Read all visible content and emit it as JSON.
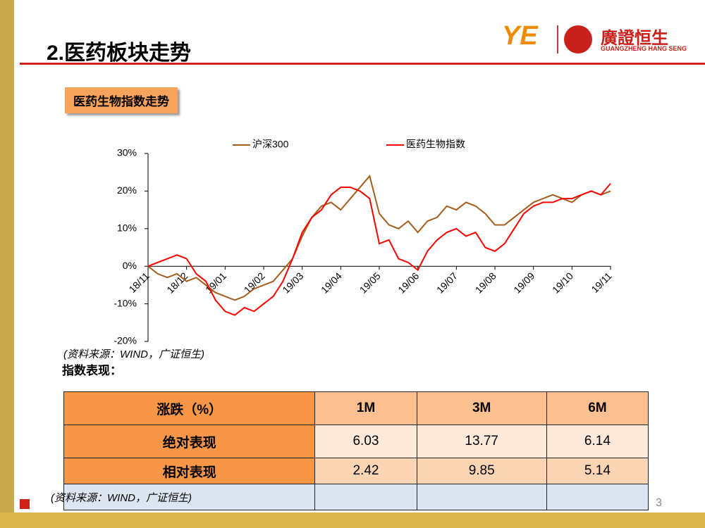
{
  "header": {
    "title": "2.医药板块走势",
    "logo_mark": "YE",
    "logo_cn": "廣證恒生",
    "logo_en": "GUANGZHENG HANG SENG"
  },
  "section_label": "医药生物指数走势",
  "chart_data": {
    "type": "line",
    "categories": [
      "18/11",
      null,
      null,
      null,
      "18/12",
      null,
      null,
      null,
      "19/01",
      null,
      null,
      null,
      "19/02",
      null,
      null,
      null,
      "19/03",
      null,
      null,
      null,
      "19/04",
      null,
      null,
      null,
      "19/05",
      null,
      null,
      null,
      "19/06",
      null,
      null,
      null,
      "19/07",
      null,
      null,
      null,
      "19/08",
      null,
      null,
      null,
      "19/09",
      null,
      null,
      null,
      "19/10",
      null,
      null,
      null,
      "19/11"
    ],
    "series": [
      {
        "name": "沪深300",
        "color": "#a65c1c",
        "values": [
          0,
          -2,
          -3,
          -2,
          -4,
          -3,
          -5,
          -7,
          -8,
          -9,
          -8,
          -6,
          -5,
          -4,
          -1,
          2,
          8,
          13,
          16,
          17,
          15,
          18,
          21,
          24,
          14,
          11,
          10,
          12,
          9,
          12,
          13,
          16,
          15,
          17,
          16,
          14,
          11,
          11,
          13,
          15,
          17,
          18,
          19,
          18,
          17,
          19,
          20,
          19,
          20
        ]
      },
      {
        "name": "医药生物指数",
        "color": "#ff0000",
        "values": [
          0,
          1,
          2,
          3,
          2,
          -2,
          -4,
          -9,
          -12,
          -13,
          -11,
          -12,
          -10,
          -8,
          -4,
          2,
          9,
          13,
          15,
          19,
          21,
          21,
          20,
          18,
          6,
          7,
          2,
          1,
          -1,
          4,
          7,
          9,
          10,
          8,
          9,
          5,
          4,
          6,
          10,
          14,
          16,
          17,
          17,
          18,
          18,
          19,
          20,
          19,
          22
        ]
      }
    ],
    "ylim": [
      -20,
      30
    ],
    "yticks": [
      {
        "value": -20,
        "label": "-20%"
      },
      {
        "value": -10,
        "label": "-10%"
      },
      {
        "value": 0,
        "label": "0%"
      },
      {
        "value": 10,
        "label": "10%"
      },
      {
        "value": 20,
        "label": "20%"
      },
      {
        "value": 30,
        "label": "30%"
      }
    ],
    "grid": false,
    "legend": "top"
  },
  "chart_source": "(资料来源：WIND，广证恒生)",
  "table_title": "指数表现：",
  "table": {
    "header": [
      "涨跌（%）",
      "1M",
      "3M",
      "6M"
    ],
    "rows": [
      [
        "绝对表现",
        6.03,
        13.77,
        6.14
      ],
      [
        "相对表现",
        2.42,
        9.85,
        5.14
      ]
    ]
  },
  "table_source": "(资料来源：WIND，广证恒生)",
  "page_number": "3"
}
